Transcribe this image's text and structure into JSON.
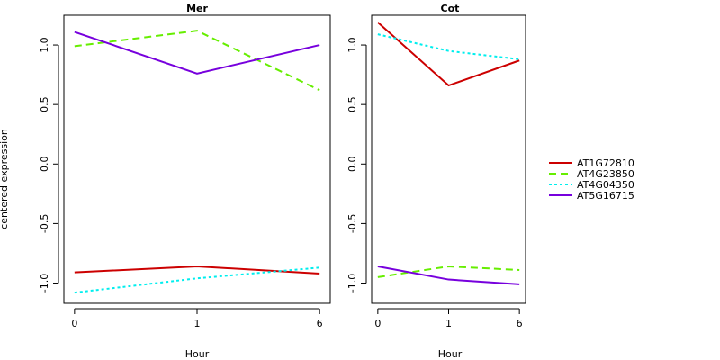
{
  "chart_data": [
    {
      "type": "line",
      "title": "Mer",
      "xlabel": "Hour",
      "ylabel": "centered expression",
      "categories": [
        "0",
        "1",
        "6"
      ],
      "ylim": [
        -1.17,
        1.25
      ],
      "yticks": [
        -1.0,
        -0.5,
        0.0,
        0.5,
        1.0
      ],
      "ytick_labels": [
        "-1.0",
        "-0.5",
        "0.0",
        "0.5",
        "1.0"
      ],
      "grid": false,
      "series": [
        {
          "name": "AT1G72810",
          "values": [
            -0.91,
            -0.86,
            -0.92
          ]
        },
        {
          "name": "AT4G23850",
          "values": [
            0.99,
            1.12,
            0.62
          ]
        },
        {
          "name": "AT4G04350",
          "values": [
            -1.08,
            -0.96,
            -0.87
          ]
        },
        {
          "name": "AT5G16715",
          "values": [
            1.11,
            0.76,
            1.0
          ]
        }
      ]
    },
    {
      "type": "line",
      "title": "Cot",
      "xlabel": "Hour",
      "ylabel": "",
      "categories": [
        "0",
        "1",
        "6"
      ],
      "ylim": [
        -1.17,
        1.25
      ],
      "yticks": [
        -1.0,
        -0.5,
        0.0,
        0.5,
        1.0
      ],
      "ytick_labels": [
        "-1.0",
        "-0.5",
        "0.0",
        "0.5",
        "1.0"
      ],
      "grid": false,
      "series": [
        {
          "name": "AT1G72810",
          "values": [
            1.19,
            0.66,
            0.87
          ]
        },
        {
          "name": "AT4G23850",
          "values": [
            -0.95,
            -0.86,
            -0.89
          ]
        },
        {
          "name": "AT4G04350",
          "values": [
            1.09,
            0.95,
            0.88
          ]
        },
        {
          "name": "AT5G16715",
          "values": [
            -0.86,
            -0.97,
            -1.01
          ]
        }
      ]
    }
  ],
  "legend": {
    "placement": "right",
    "entries": [
      {
        "name": "AT1G72810",
        "color": "#cc0000",
        "dash": "solid"
      },
      {
        "name": "AT4G23850",
        "color": "#66ee00",
        "dash": "dashed"
      },
      {
        "name": "AT4G04350",
        "color": "#00eeee",
        "dash": "dotted"
      },
      {
        "name": "AT5G16715",
        "color": "#7700dd",
        "dash": "solid"
      }
    ]
  }
}
